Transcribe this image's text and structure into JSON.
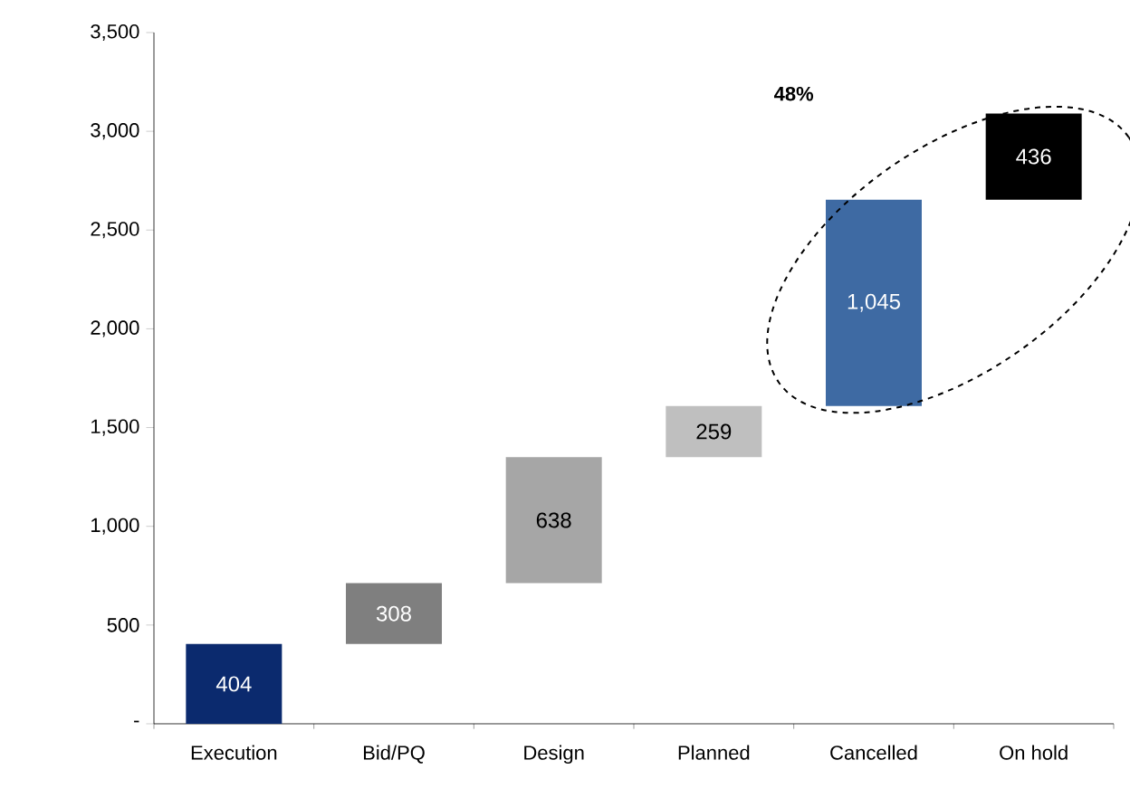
{
  "chart_data": {
    "type": "bar",
    "categories": [
      "Execution",
      "Bid/PQ",
      "Design",
      "Planned",
      "Cancelled",
      "On hold"
    ],
    "values": [
      404,
      308,
      638,
      259,
      1045,
      436
    ],
    "base": [
      0,
      404,
      712,
      1350,
      1609,
      2654
    ],
    "colors": [
      "#0b2a6e",
      "#7f7f7f",
      "#a6a6a6",
      "#bfbfbf",
      "#3e6aa3",
      "#000000"
    ],
    "value_labels": [
      "404",
      "308",
      "638",
      "259",
      "1,045",
      "436"
    ],
    "ylim": [
      0,
      3500
    ],
    "yticks": [
      {
        "value": 0,
        "label": "-"
      },
      500,
      {
        "value": 1000,
        "label": "1,000"
      },
      {
        "value": 1500,
        "label": "1,500"
      },
      {
        "value": 2000,
        "label": "2,000"
      },
      {
        "value": 2500,
        "label": "2,500"
      },
      {
        "value": 3000,
        "label": "3,000"
      },
      {
        "value": 3500,
        "label": "3,500"
      }
    ],
    "annotations": [
      "48%"
    ],
    "grid": false
  }
}
